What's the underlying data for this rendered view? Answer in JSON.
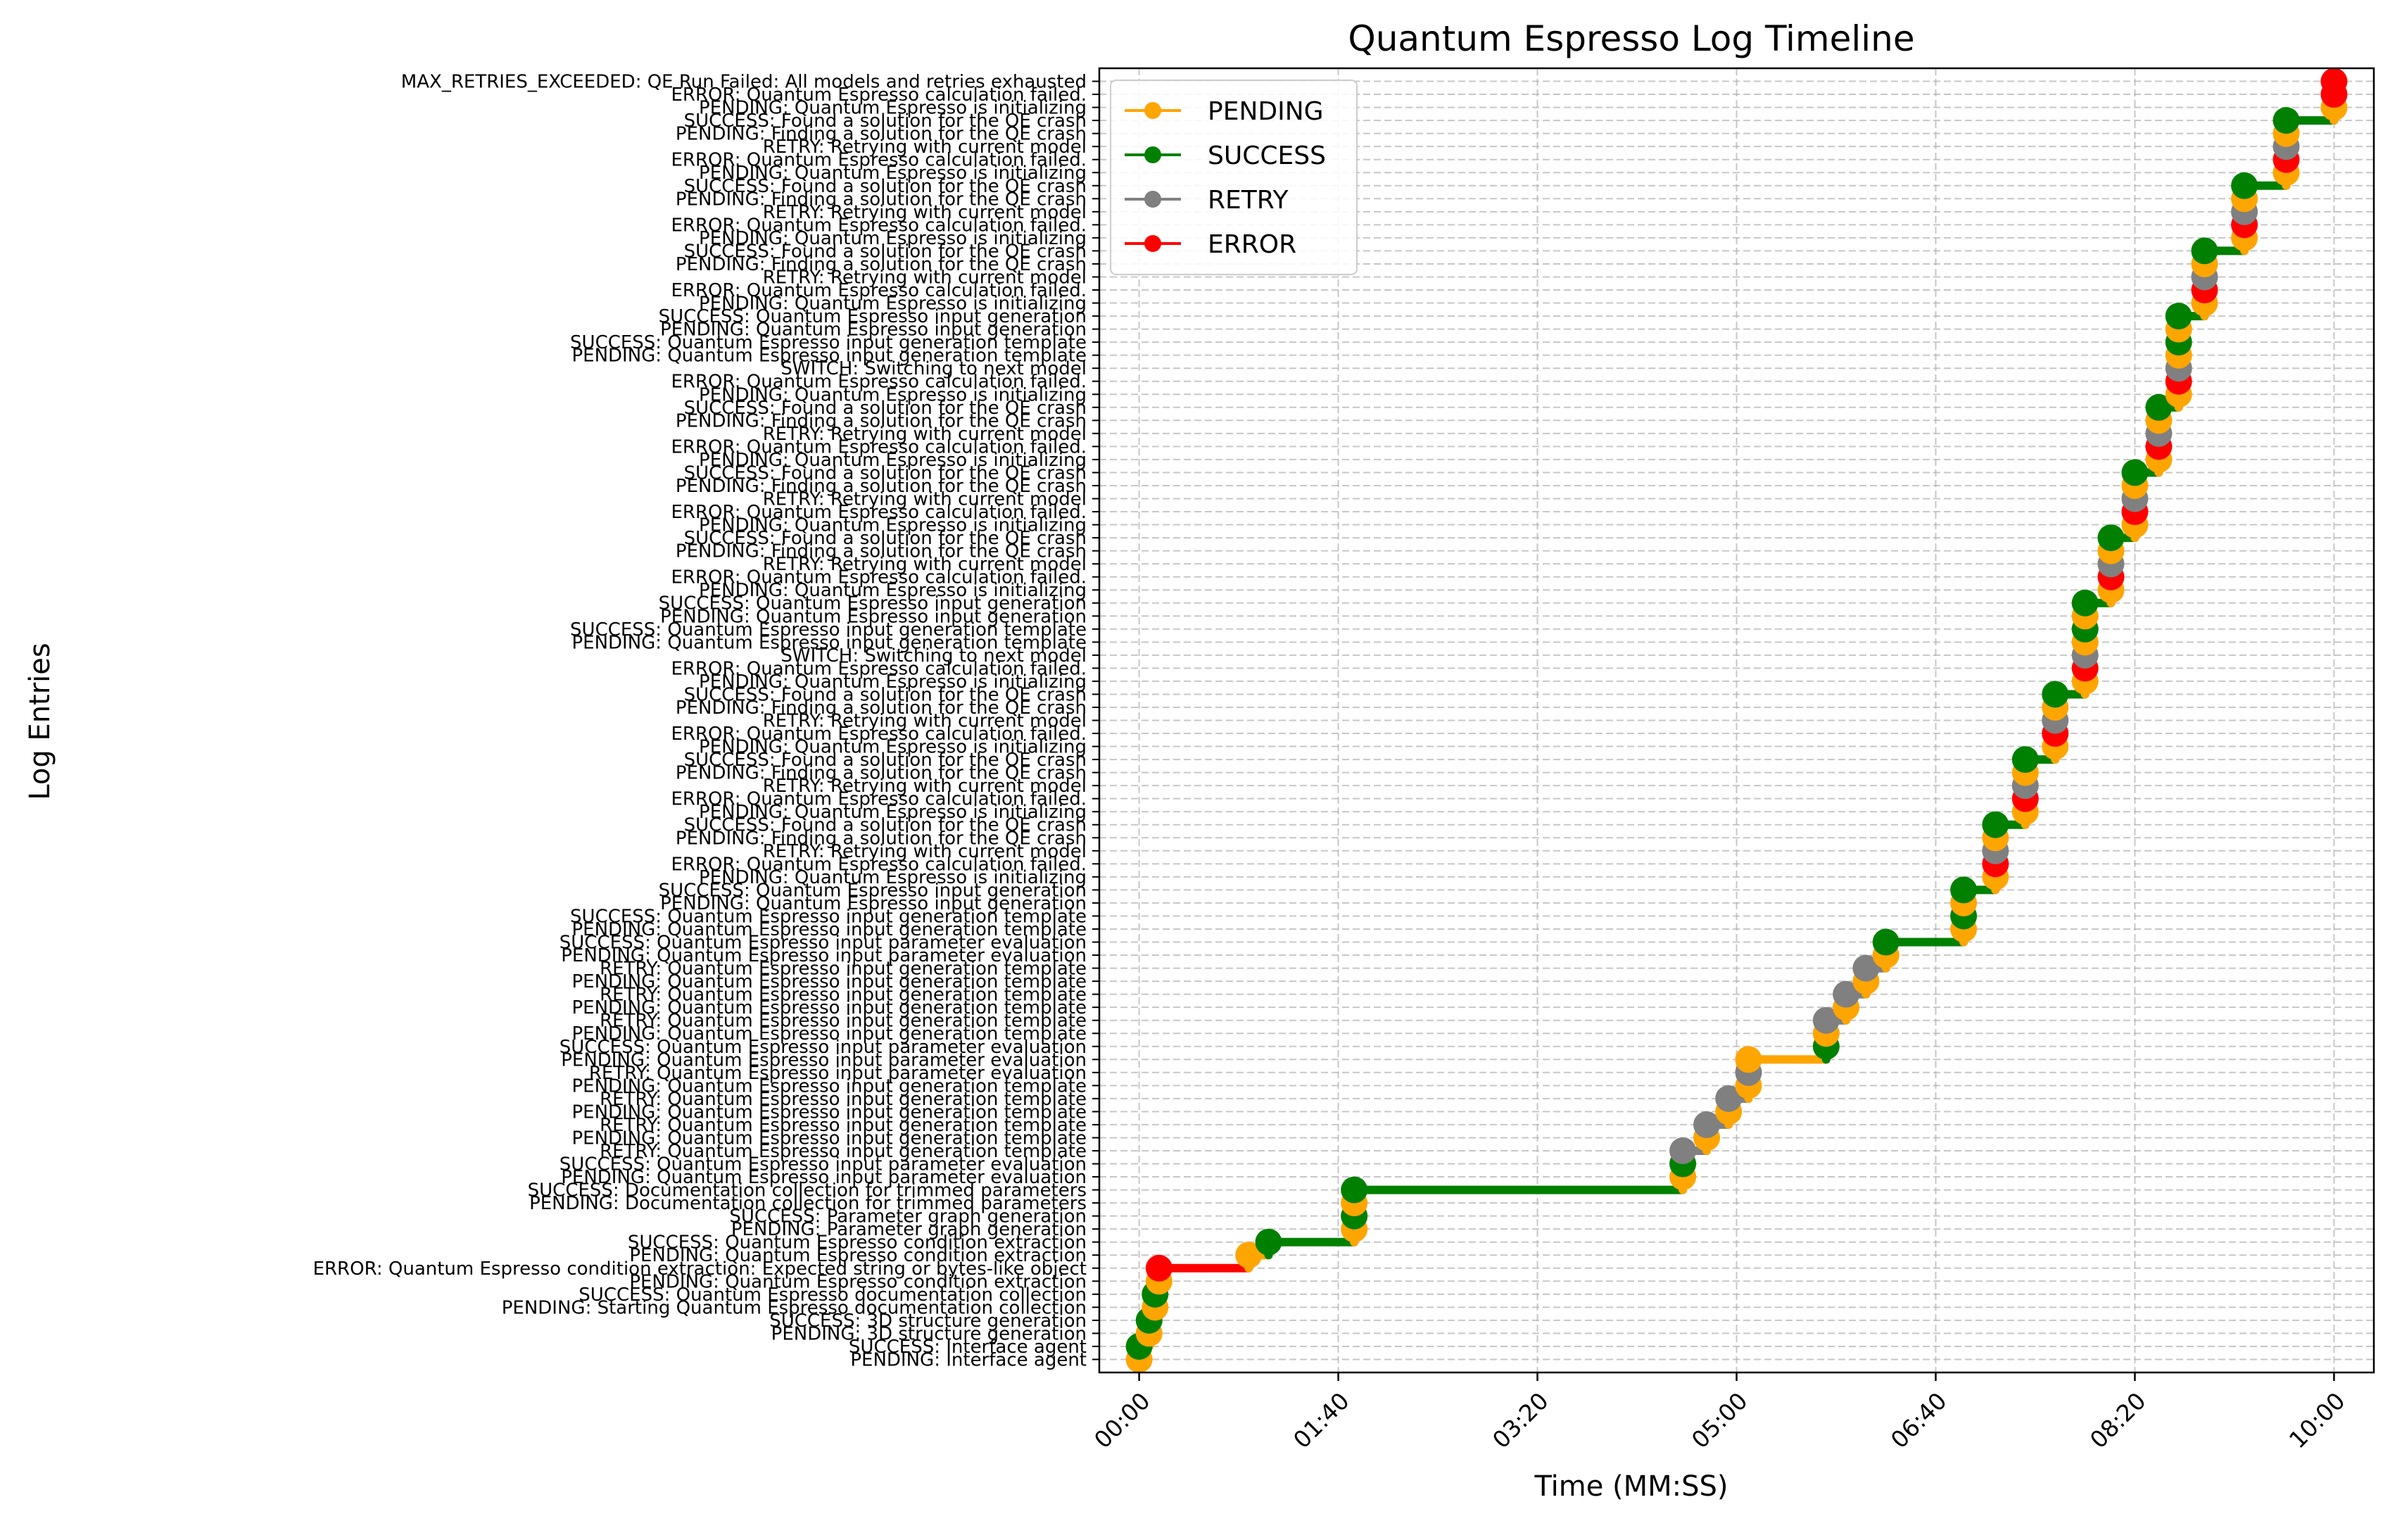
{
  "chart_data": {
    "type": "line",
    "title": "Quantum Espresso Log Timeline",
    "xlabel": "Time (MM:SS)",
    "ylabel": "Log Entries",
    "x_unit": "seconds",
    "xlim": [
      -20,
      620
    ],
    "ylim": [
      -1,
      99
    ],
    "x_ticks": [
      {
        "value": 0,
        "label": "00:00"
      },
      {
        "value": 100,
        "label": "01:40"
      },
      {
        "value": 200,
        "label": "03:20"
      },
      {
        "value": 300,
        "label": "05:00"
      },
      {
        "value": 400,
        "label": "06:40"
      },
      {
        "value": 500,
        "label": "08:20"
      },
      {
        "value": 600,
        "label": "10:00"
      }
    ],
    "grid": true,
    "legend_position": "top-left",
    "legend": [
      {
        "name": "PENDING",
        "color": "#ffa500"
      },
      {
        "name": "SUCCESS",
        "color": "#008000"
      },
      {
        "name": "RETRY",
        "color": "#808080"
      },
      {
        "name": "ERROR",
        "color": "#ff0000"
      }
    ],
    "status_colors": {
      "PENDING": "#ffa500",
      "SUCCESS": "#008000",
      "RETRY": "#808080",
      "ERROR": "#ff0000",
      "SWITCH": "#808080",
      "MAX_RETRIES_EXCEEDED": "#ff0000"
    },
    "entries": [
      {
        "label": "PENDING: Interface agent",
        "status": "PENDING",
        "t": 0
      },
      {
        "label": "SUCCESS: Interface agent",
        "status": "SUCCESS",
        "t": 0
      },
      {
        "label": "PENDING: 3D structure generation",
        "status": "PENDING",
        "t": 5
      },
      {
        "label": "SUCCESS: 3D structure generation",
        "status": "SUCCESS",
        "t": 5
      },
      {
        "label": "PENDING: Starting Quantum Espresso documentation collection",
        "status": "PENDING",
        "t": 8
      },
      {
        "label": "SUCCESS: Quantum Espresso documentation collection",
        "status": "SUCCESS",
        "t": 8
      },
      {
        "label": "PENDING: Quantum Espresso condition extraction",
        "status": "PENDING",
        "t": 10
      },
      {
        "label": "ERROR: Quantum Espresso condition extraction: Expected string or bytes-like object",
        "status": "ERROR",
        "t": 10
      },
      {
        "label": "PENDING: Quantum Espresso condition extraction",
        "status": "PENDING",
        "t": 55
      },
      {
        "label": "SUCCESS: Quantum Espresso condition extraction",
        "status": "SUCCESS",
        "t": 65
      },
      {
        "label": "PENDING: Parameter graph generation",
        "status": "PENDING",
        "t": 108
      },
      {
        "label": "SUCCESS: Parameter graph generation",
        "status": "SUCCESS",
        "t": 108
      },
      {
        "label": "PENDING: Documentation collection for trimmed parameters",
        "status": "PENDING",
        "t": 108
      },
      {
        "label": "SUCCESS: Documentation collection for trimmed parameters",
        "status": "SUCCESS",
        "t": 108
      },
      {
        "label": "PENDING: Quantum Espresso input parameter evaluation",
        "status": "PENDING",
        "t": 273
      },
      {
        "label": "SUCCESS: Quantum Espresso input parameter evaluation",
        "status": "SUCCESS",
        "t": 273
      },
      {
        "label": "RETRY: Quantum Espresso input generation template",
        "status": "RETRY",
        "t": 273
      },
      {
        "label": "PENDING: Quantum Espresso input generation template",
        "status": "PENDING",
        "t": 285
      },
      {
        "label": "RETRY: Quantum Espresso input generation template",
        "status": "RETRY",
        "t": 285
      },
      {
        "label": "PENDING: Quantum Espresso input generation template",
        "status": "PENDING",
        "t": 296
      },
      {
        "label": "RETRY: Quantum Espresso input generation template",
        "status": "RETRY",
        "t": 296
      },
      {
        "label": "PENDING: Quantum Espresso input generation template",
        "status": "PENDING",
        "t": 306
      },
      {
        "label": "RETRY: Quantum Espresso input parameter evaluation",
        "status": "RETRY",
        "t": 306
      },
      {
        "label": "PENDING: Quantum Espresso input parameter evaluation",
        "status": "PENDING",
        "t": 306
      },
      {
        "label": "SUCCESS: Quantum Espresso input parameter evaluation",
        "status": "SUCCESS",
        "t": 345
      },
      {
        "label": "PENDING: Quantum Espresso input generation template",
        "status": "PENDING",
        "t": 345
      },
      {
        "label": "RETRY: Quantum Espresso input generation template",
        "status": "RETRY",
        "t": 345
      },
      {
        "label": "PENDING: Quantum Espresso input generation template",
        "status": "PENDING",
        "t": 355
      },
      {
        "label": "RETRY: Quantum Espresso input generation template",
        "status": "RETRY",
        "t": 355
      },
      {
        "label": "PENDING: Quantum Espresso input generation template",
        "status": "PENDING",
        "t": 365
      },
      {
        "label": "RETRY: Quantum Espresso input generation template",
        "status": "RETRY",
        "t": 365
      },
      {
        "label": "PENDING: Quantum Espresso input parameter evaluation",
        "status": "PENDING",
        "t": 375
      },
      {
        "label": "SUCCESS: Quantum Espresso input parameter evaluation",
        "status": "SUCCESS",
        "t": 375
      },
      {
        "label": "PENDING: Quantum Espresso input generation template",
        "status": "PENDING",
        "t": 414
      },
      {
        "label": "SUCCESS: Quantum Espresso input generation template",
        "status": "SUCCESS",
        "t": 414
      },
      {
        "label": "PENDING: Quantum Espresso input generation",
        "status": "PENDING",
        "t": 414
      },
      {
        "label": "SUCCESS: Quantum Espresso input generation",
        "status": "SUCCESS",
        "t": 414
      },
      {
        "label": "PENDING: Quantum Espresso is initializing",
        "status": "PENDING",
        "t": 430
      },
      {
        "label": "ERROR: Quantum Espresso calculation failed.",
        "status": "ERROR",
        "t": 430
      },
      {
        "label": "RETRY: Retrying with current model",
        "status": "RETRY",
        "t": 430
      },
      {
        "label": "PENDING: Finding a solution for the QE crash",
        "status": "PENDING",
        "t": 430
      },
      {
        "label": "SUCCESS: Found a solution for the QE crash",
        "status": "SUCCESS",
        "t": 430
      },
      {
        "label": "PENDING: Quantum Espresso is initializing",
        "status": "PENDING",
        "t": 445
      },
      {
        "label": "ERROR: Quantum Espresso calculation failed.",
        "status": "ERROR",
        "t": 445
      },
      {
        "label": "RETRY: Retrying with current model",
        "status": "RETRY",
        "t": 445
      },
      {
        "label": "PENDING: Finding a solution for the QE crash",
        "status": "PENDING",
        "t": 445
      },
      {
        "label": "SUCCESS: Found a solution for the QE crash",
        "status": "SUCCESS",
        "t": 445
      },
      {
        "label": "PENDING: Quantum Espresso is initializing",
        "status": "PENDING",
        "t": 460
      },
      {
        "label": "ERROR: Quantum Espresso calculation failed.",
        "status": "ERROR",
        "t": 460
      },
      {
        "label": "RETRY: Retrying with current model",
        "status": "RETRY",
        "t": 460
      },
      {
        "label": "PENDING: Finding a solution for the QE crash",
        "status": "PENDING",
        "t": 460
      },
      {
        "label": "SUCCESS: Found a solution for the QE crash",
        "status": "SUCCESS",
        "t": 460
      },
      {
        "label": "PENDING: Quantum Espresso is initializing",
        "status": "PENDING",
        "t": 475
      },
      {
        "label": "ERROR: Quantum Espresso calculation failed.",
        "status": "ERROR",
        "t": 475
      },
      {
        "label": "SWITCH: Switching to next model",
        "status": "SWITCH",
        "t": 475
      },
      {
        "label": "PENDING: Quantum Espresso input generation template",
        "status": "PENDING",
        "t": 475
      },
      {
        "label": "SUCCESS: Quantum Espresso input generation template",
        "status": "SUCCESS",
        "t": 475
      },
      {
        "label": "PENDING: Quantum Espresso input generation",
        "status": "PENDING",
        "t": 475
      },
      {
        "label": "SUCCESS: Quantum Espresso input generation",
        "status": "SUCCESS",
        "t": 475
      },
      {
        "label": "PENDING: Quantum Espresso is initializing",
        "status": "PENDING",
        "t": 488
      },
      {
        "label": "ERROR: Quantum Espresso calculation failed.",
        "status": "ERROR",
        "t": 488
      },
      {
        "label": "RETRY: Retrying with current model",
        "status": "RETRY",
        "t": 488
      },
      {
        "label": "PENDING: Finding a solution for the QE crash",
        "status": "PENDING",
        "t": 488
      },
      {
        "label": "SUCCESS: Found a solution for the QE crash",
        "status": "SUCCESS",
        "t": 488
      },
      {
        "label": "PENDING: Quantum Espresso is initializing",
        "status": "PENDING",
        "t": 500
      },
      {
        "label": "ERROR: Quantum Espresso calculation failed.",
        "status": "ERROR",
        "t": 500
      },
      {
        "label": "RETRY: Retrying with current model",
        "status": "RETRY",
        "t": 500
      },
      {
        "label": "PENDING: Finding a solution for the QE crash",
        "status": "PENDING",
        "t": 500
      },
      {
        "label": "SUCCESS: Found a solution for the QE crash",
        "status": "SUCCESS",
        "t": 500
      },
      {
        "label": "PENDING: Quantum Espresso is initializing",
        "status": "PENDING",
        "t": 512
      },
      {
        "label": "ERROR: Quantum Espresso calculation failed.",
        "status": "ERROR",
        "t": 512
      },
      {
        "label": "RETRY: Retrying with current model",
        "status": "RETRY",
        "t": 512
      },
      {
        "label": "PENDING: Finding a solution for the QE crash",
        "status": "PENDING",
        "t": 512
      },
      {
        "label": "SUCCESS: Found a solution for the QE crash",
        "status": "SUCCESS",
        "t": 512
      },
      {
        "label": "PENDING: Quantum Espresso is initializing",
        "status": "PENDING",
        "t": 522
      },
      {
        "label": "ERROR: Quantum Espresso calculation failed.",
        "status": "ERROR",
        "t": 522
      },
      {
        "label": "SWITCH: Switching to next model",
        "status": "SWITCH",
        "t": 522
      },
      {
        "label": "PENDING: Quantum Espresso input generation template",
        "status": "PENDING",
        "t": 522
      },
      {
        "label": "SUCCESS: Quantum Espresso input generation template",
        "status": "SUCCESS",
        "t": 522
      },
      {
        "label": "PENDING: Quantum Espresso input generation",
        "status": "PENDING",
        "t": 522
      },
      {
        "label": "SUCCESS: Quantum Espresso input generation",
        "status": "SUCCESS",
        "t": 522
      },
      {
        "label": "PENDING: Quantum Espresso is initializing",
        "status": "PENDING",
        "t": 535
      },
      {
        "label": "ERROR: Quantum Espresso calculation failed.",
        "status": "ERROR",
        "t": 535
      },
      {
        "label": "RETRY: Retrying with current model",
        "status": "RETRY",
        "t": 535
      },
      {
        "label": "PENDING: Finding a solution for the QE crash",
        "status": "PENDING",
        "t": 535
      },
      {
        "label": "SUCCESS: Found a solution for the QE crash",
        "status": "SUCCESS",
        "t": 535
      },
      {
        "label": "PENDING: Quantum Espresso is initializing",
        "status": "PENDING",
        "t": 555
      },
      {
        "label": "ERROR: Quantum Espresso calculation failed.",
        "status": "ERROR",
        "t": 555
      },
      {
        "label": "RETRY: Retrying with current model",
        "status": "RETRY",
        "t": 555
      },
      {
        "label": "PENDING: Finding a solution for the QE crash",
        "status": "PENDING",
        "t": 555
      },
      {
        "label": "SUCCESS: Found a solution for the QE crash",
        "status": "SUCCESS",
        "t": 555
      },
      {
        "label": "PENDING: Quantum Espresso is initializing",
        "status": "PENDING",
        "t": 576
      },
      {
        "label": "ERROR: Quantum Espresso calculation failed.",
        "status": "ERROR",
        "t": 576
      },
      {
        "label": "RETRY: Retrying with current model",
        "status": "RETRY",
        "t": 576
      },
      {
        "label": "PENDING: Finding a solution for the QE crash",
        "status": "PENDING",
        "t": 576
      },
      {
        "label": "SUCCESS: Found a solution for the QE crash",
        "status": "SUCCESS",
        "t": 576
      },
      {
        "label": "PENDING: Quantum Espresso is initializing",
        "status": "PENDING",
        "t": 600
      },
      {
        "label": "ERROR: Quantum Espresso calculation failed.",
        "status": "ERROR",
        "t": 600
      },
      {
        "label": "MAX_RETRIES_EXCEEDED: QE Run Failed: All models and retries exhausted",
        "status": "MAX_RETRIES_EXCEEDED",
        "t": 600
      }
    ]
  }
}
